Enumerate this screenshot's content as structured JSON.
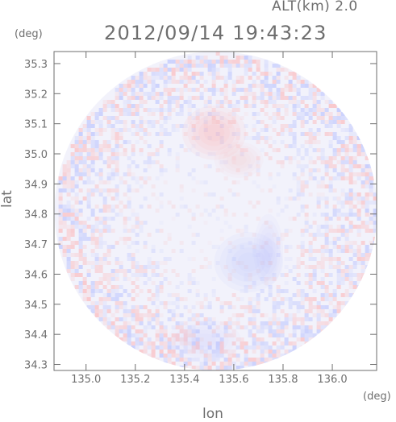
{
  "header": {
    "altitude": "ALT(km) 2.0",
    "timestamp": "2012/09/14 19:43:23"
  },
  "axis_units": {
    "x": "(deg)",
    "y": "(deg)"
  },
  "colors": {
    "axis": "#6e6e6e",
    "positive": "#ffa8a8",
    "negative": "#a8b4ff",
    "neutral": "#f2f2fb"
  },
  "chart_data": {
    "type": "heatmap",
    "title": "2012/09/14 19:43:23",
    "subtitle": "ALT(km) 2.0",
    "xlabel": "lon",
    "ylabel": "lat",
    "xlim": [
      134.87,
      136.18
    ],
    "ylim": [
      34.28,
      35.34
    ],
    "x_ticks": [
      "135.0",
      "135.2",
      "135.4",
      "135.6",
      "135.8",
      "136.0"
    ],
    "y_ticks": [
      "34.3",
      "34.4",
      "34.5",
      "34.6",
      "34.7",
      "34.8",
      "34.9",
      "35.0",
      "35.1",
      "35.2",
      "35.3"
    ],
    "x_tick_values": [
      135.0,
      135.2,
      135.4,
      135.6,
      135.8,
      136.0
    ],
    "y_tick_values": [
      34.3,
      34.4,
      34.5,
      34.6,
      34.7,
      34.8,
      34.9,
      35.0,
      35.1,
      35.2,
      35.3
    ],
    "field_center": [
      135.527,
      34.81
    ],
    "field_radius_lon": 0.655,
    "field_radius_lat": 0.53,
    "features": [
      {
        "sign": "positive",
        "center": [
          135.52,
          35.07
        ],
        "radius": [
          0.13,
          0.09
        ],
        "strength": 0.8
      },
      {
        "sign": "positive",
        "center": [
          135.62,
          34.98
        ],
        "radius": [
          0.1,
          0.06
        ],
        "strength": 0.4
      },
      {
        "sign": "negative",
        "center": [
          135.66,
          34.64
        ],
        "radius": [
          0.14,
          0.1
        ],
        "strength": 0.6
      },
      {
        "sign": "negative",
        "center": [
          135.74,
          34.68
        ],
        "radius": [
          0.06,
          0.12
        ],
        "strength": 0.4
      },
      {
        "sign": "negative",
        "center": [
          135.48,
          34.38
        ],
        "radius": [
          0.15,
          0.07
        ],
        "strength": 0.3
      }
    ]
  }
}
